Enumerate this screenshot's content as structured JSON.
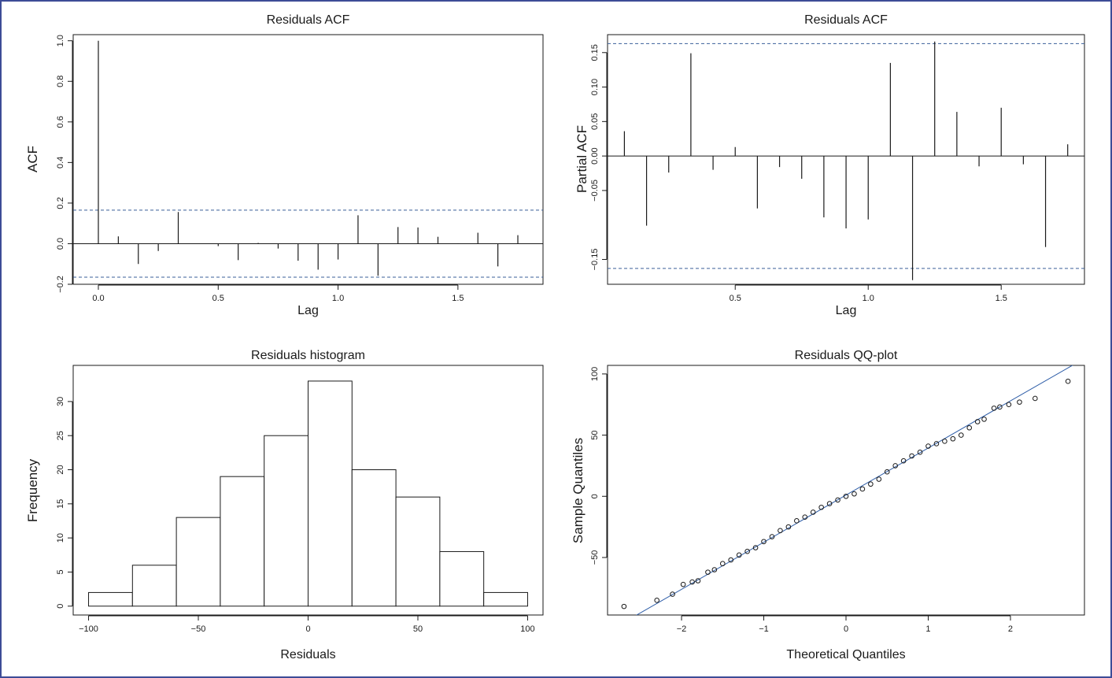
{
  "colors": {
    "frame": "#3d4c97",
    "confidence_band": "#3a5f99",
    "qq_line": "#2f5ea8",
    "ink": "#1a1a1a"
  },
  "chart_data": [
    {
      "id": "acf",
      "type": "bar",
      "title": "Residuals ACF",
      "xlabel": "Lag",
      "ylabel": "ACF",
      "xlim": [
        0,
        1.75
      ],
      "ylim": [
        -0.2,
        1.0
      ],
      "xticks": [
        0.0,
        0.5,
        1.0,
        1.5
      ],
      "xtick_labels": [
        "0.0",
        "0.5",
        "1.0",
        "1.5"
      ],
      "yticks": [
        -0.2,
        0.0,
        0.2,
        0.4,
        0.6,
        0.8,
        1.0
      ],
      "ytick_labels": [
        "−0.2",
        "0.0",
        "0.2",
        "0.4",
        "0.6",
        "0.8",
        "1.0"
      ],
      "confidence_bounds": [
        0.165,
        -0.165
      ],
      "x": [
        0,
        0.0833,
        0.1667,
        0.25,
        0.3333,
        0.4167,
        0.5,
        0.5833,
        0.6667,
        0.75,
        0.8333,
        0.9167,
        1.0,
        1.0833,
        1.1667,
        1.25,
        1.3333,
        1.4167,
        1.5,
        1.5833,
        1.6667,
        1.75
      ],
      "values": [
        1.0,
        0.036,
        -0.1,
        -0.036,
        0.156,
        0.0,
        -0.012,
        -0.081,
        0.004,
        -0.024,
        -0.084,
        -0.128,
        -0.078,
        0.14,
        -0.158,
        0.082,
        0.08,
        0.034,
        0.002,
        0.054,
        -0.112,
        0.042
      ]
    },
    {
      "id": "pacf",
      "type": "bar",
      "title": "Residuals ACF",
      "xlabel": "Lag",
      "ylabel": "Partial ACF",
      "xlim": [
        0.0833,
        1.75
      ],
      "ylim": [
        -0.18,
        0.17
      ],
      "xticks": [
        0.5,
        1.0,
        1.5
      ],
      "xtick_labels": [
        "0.5",
        "1.0",
        "1.5"
      ],
      "yticks": [
        -0.15,
        -0.05,
        0.0,
        0.05,
        0.1,
        0.15
      ],
      "ytick_labels": [
        "−0.15",
        "−0.05",
        "0.00",
        "0.05",
        "0.10",
        "0.15"
      ],
      "confidence_bounds": [
        0.163,
        -0.163
      ],
      "x": [
        0.0833,
        0.1667,
        0.25,
        0.3333,
        0.4167,
        0.5,
        0.5833,
        0.6667,
        0.75,
        0.8333,
        0.9167,
        1.0,
        1.0833,
        1.1667,
        1.25,
        1.3333,
        1.4167,
        1.5,
        1.5833,
        1.6667,
        1.75
      ],
      "values": [
        0.036,
        -0.101,
        -0.024,
        0.149,
        -0.02,
        0.013,
        -0.076,
        -0.016,
        -0.033,
        -0.089,
        -0.105,
        -0.092,
        0.135,
        -0.18,
        0.166,
        0.064,
        -0.015,
        0.07,
        -0.012,
        -0.132,
        0.017
      ]
    },
    {
      "id": "histogram",
      "type": "bar",
      "title": "Residuals histogram",
      "xlabel": "Residuals",
      "ylabel": "Frequency",
      "xlim": [
        -100,
        100
      ],
      "ylim": [
        0,
        33
      ],
      "xticks": [
        -100,
        -50,
        0,
        50,
        100
      ],
      "xtick_labels": [
        "−100",
        "−50",
        "0",
        "50",
        "100"
      ],
      "yticks": [
        0,
        5,
        10,
        15,
        20,
        25,
        30
      ],
      "ytick_labels": [
        "0",
        "5",
        "10",
        "15",
        "20",
        "25",
        "30"
      ],
      "bin_edges": [
        -100,
        -80,
        -60,
        -40,
        -20,
        0,
        20,
        40,
        60,
        80,
        100
      ],
      "values": [
        2,
        6,
        13,
        19,
        25,
        33,
        20,
        16,
        8,
        2
      ]
    },
    {
      "id": "qqplot",
      "type": "scatter",
      "title": "Residuals QQ-plot",
      "xlabel": "Theoretical Quantiles",
      "ylabel": "Sample Quantiles",
      "xlim": [
        -2.7,
        2.7
      ],
      "ylim": [
        -90,
        95
      ],
      "xticks": [
        -2,
        -1,
        0,
        1,
        2
      ],
      "xtick_labels": [
        "−2",
        "−1",
        "0",
        "1",
        "2"
      ],
      "yticks": [
        -50,
        0,
        50,
        100
      ],
      "ytick_labels": [
        "−50",
        "0",
        "50",
        "100"
      ],
      "reference_line": {
        "intercept": 1.0,
        "slope": 38.5
      },
      "x": [
        -2.7,
        -2.3,
        -2.11,
        -1.98,
        -1.87,
        -1.8,
        -1.68,
        -1.6,
        -1.5,
        -1.4,
        -1.3,
        -1.2,
        -1.1,
        -1.0,
        -0.9,
        -0.8,
        -0.7,
        -0.6,
        -0.5,
        -0.4,
        -0.3,
        -0.2,
        -0.1,
        0.0,
        0.1,
        0.2,
        0.3,
        0.4,
        0.5,
        0.6,
        0.7,
        0.8,
        0.9,
        1.0,
        1.1,
        1.2,
        1.3,
        1.4,
        1.5,
        1.6,
        1.68,
        1.8,
        1.87,
        1.98,
        2.11,
        2.3,
        2.7
      ],
      "values": [
        -90,
        -85,
        -80,
        -72,
        -70,
        -69,
        -62,
        -60,
        -55,
        -52,
        -48,
        -45,
        -42,
        -37,
        -33,
        -28,
        -25,
        -20,
        -17,
        -13,
        -9,
        -6,
        -3,
        0,
        2,
        6,
        10,
        14,
        20,
        25,
        29,
        33,
        36,
        41,
        43,
        45,
        47,
        50,
        56,
        61,
        63,
        72,
        73,
        75,
        77,
        80,
        94
      ]
    }
  ]
}
